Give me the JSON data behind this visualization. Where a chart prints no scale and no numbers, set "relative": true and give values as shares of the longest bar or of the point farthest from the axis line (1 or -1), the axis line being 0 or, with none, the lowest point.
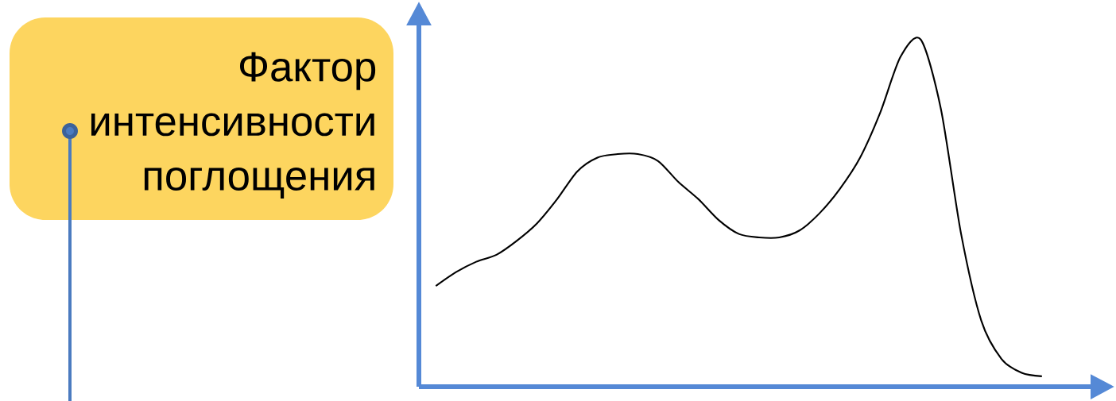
{
  "chart_data": {
    "type": "line",
    "relative": true,
    "annotations": [
      "Фактор интенсивности поглощения"
    ],
    "color": "#000000",
    "categories": [
      null,
      null,
      null,
      null,
      null,
      null,
      null,
      null,
      null,
      null,
      null,
      null,
      null,
      null,
      null,
      null,
      null,
      null,
      null,
      null,
      null,
      null,
      null,
      null,
      null,
      null,
      null,
      null,
      null,
      null,
      null
    ],
    "values": [
      0.29,
      0.33,
      0.36,
      0.38,
      0.42,
      0.47,
      0.54,
      0.62,
      0.66,
      0.67,
      0.67,
      0.65,
      0.59,
      0.54,
      0.48,
      0.44,
      0.43,
      0.43,
      0.45,
      0.5,
      0.57,
      0.66,
      0.79,
      0.95,
      1.0,
      0.8,
      0.44,
      0.19,
      0.08,
      0.04,
      0.03
    ]
  }
}
